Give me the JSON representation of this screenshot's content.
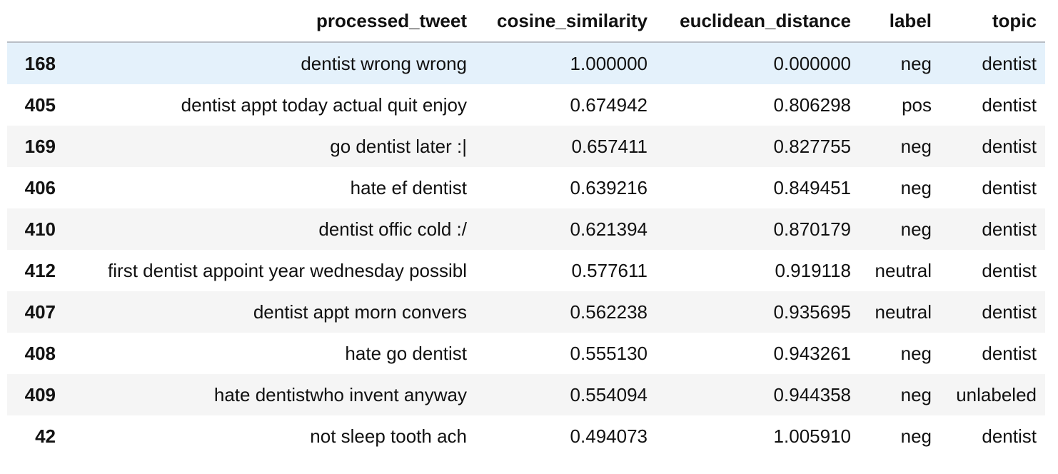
{
  "table": {
    "columns": [
      "",
      "processed_tweet",
      "cosine_similarity",
      "euclidean_distance",
      "label",
      "topic"
    ],
    "rows": [
      {
        "index": "168",
        "processed_tweet": "dentist wrong wrong",
        "cosine_similarity": "1.000000",
        "euclidean_distance": "0.000000",
        "label": "neg",
        "topic": "dentist"
      },
      {
        "index": "405",
        "processed_tweet": "dentist appt today actual quit enjoy",
        "cosine_similarity": "0.674942",
        "euclidean_distance": "0.806298",
        "label": "pos",
        "topic": "dentist"
      },
      {
        "index": "169",
        "processed_tweet": "go dentist later :|",
        "cosine_similarity": "0.657411",
        "euclidean_distance": "0.827755",
        "label": "neg",
        "topic": "dentist"
      },
      {
        "index": "406",
        "processed_tweet": "hate ef dentist",
        "cosine_similarity": "0.639216",
        "euclidean_distance": "0.849451",
        "label": "neg",
        "topic": "dentist"
      },
      {
        "index": "410",
        "processed_tweet": "dentist offic cold :/",
        "cosine_similarity": "0.621394",
        "euclidean_distance": "0.870179",
        "label": "neg",
        "topic": "dentist"
      },
      {
        "index": "412",
        "processed_tweet": "first dentist appoint year wednesday possibl",
        "cosine_similarity": "0.577611",
        "euclidean_distance": "0.919118",
        "label": "neutral",
        "topic": "dentist"
      },
      {
        "index": "407",
        "processed_tweet": "dentist appt morn convers",
        "cosine_similarity": "0.562238",
        "euclidean_distance": "0.935695",
        "label": "neutral",
        "topic": "dentist"
      },
      {
        "index": "408",
        "processed_tweet": "hate go dentist",
        "cosine_similarity": "0.555130",
        "euclidean_distance": "0.943261",
        "label": "neg",
        "topic": "dentist"
      },
      {
        "index": "409",
        "processed_tweet": "hate dentistwho invent anyway",
        "cosine_similarity": "0.554094",
        "euclidean_distance": "0.944358",
        "label": "neg",
        "topic": "unlabeled"
      },
      {
        "index": "42",
        "processed_tweet": "not sleep tooth ach",
        "cosine_similarity": "0.494073",
        "euclidean_distance": "1.005910",
        "label": "neg",
        "topic": "dentist"
      }
    ]
  },
  "colors": {
    "hover_row": "#e4f1fb",
    "odd_row": "#f5f5f5",
    "even_row": "#ffffff",
    "header_border": "#b9bec6"
  }
}
